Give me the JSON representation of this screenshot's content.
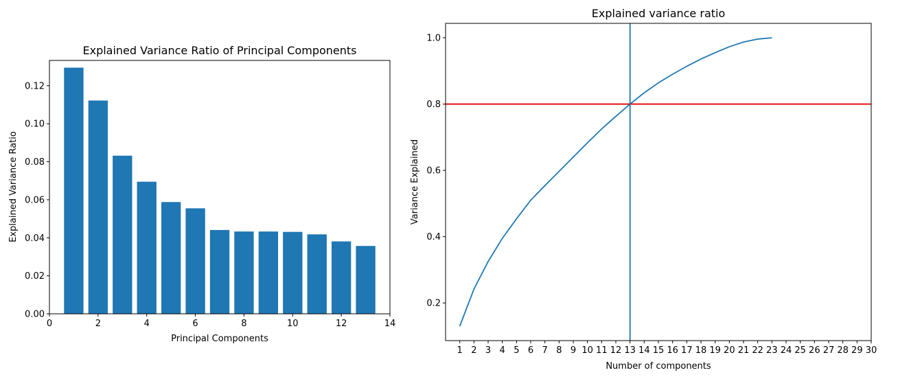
{
  "chart_data": [
    {
      "type": "bar",
      "title": "Explained Variance Ratio of Principal Components",
      "xlabel": "Principal Components",
      "ylabel": "Explained Variance Ratio",
      "x": [
        1,
        2,
        3,
        4,
        5,
        6,
        7,
        8,
        9,
        10,
        11,
        12,
        13
      ],
      "values": [
        0.1295,
        0.1122,
        0.0832,
        0.0695,
        0.0588,
        0.0555,
        0.0441,
        0.0433,
        0.0433,
        0.0431,
        0.0418,
        0.0381,
        0.0357
      ],
      "xlim": [
        0,
        14
      ],
      "ylim": [
        0,
        0.1333
      ],
      "xticks": [
        "0",
        "2",
        "4",
        "6",
        "8",
        "10",
        "12",
        "14"
      ],
      "yticks": [
        "0.00",
        "0.02",
        "0.04",
        "0.06",
        "0.08",
        "0.10",
        "0.12"
      ],
      "color": "#1f77b4"
    },
    {
      "type": "line",
      "title": "Explained variance ratio",
      "xlabel": "Number of components",
      "ylabel": "Variance Explained",
      "x": [
        1,
        2,
        3,
        4,
        5,
        6,
        7,
        8,
        9,
        10,
        11,
        12,
        13,
        14,
        15,
        16,
        17,
        18,
        19,
        20,
        21,
        22,
        23
      ],
      "values": [
        0.13,
        0.242,
        0.325,
        0.395,
        0.454,
        0.51,
        0.554,
        0.597,
        0.64,
        0.683,
        0.725,
        0.763,
        0.8,
        0.834,
        0.864,
        0.89,
        0.914,
        0.936,
        0.955,
        0.973,
        0.987,
        0.996,
        1.0
      ],
      "xlim": [
        0,
        30
      ],
      "ylim": [
        0.0865,
        1.0435
      ],
      "xticks": [
        "1",
        "2",
        "3",
        "4",
        "5",
        "6",
        "7",
        "8",
        "9",
        "10",
        "11",
        "12",
        "13",
        "14",
        "15",
        "16",
        "17",
        "18",
        "19",
        "20",
        "21",
        "22",
        "23",
        "24",
        "25",
        "26",
        "27",
        "28",
        "29",
        "30"
      ],
      "yticks": [
        "0.2",
        "0.4",
        "0.6",
        "0.8",
        "1.0"
      ],
      "hline": 0.8,
      "vline": 13,
      "line_color": "#1f77b4",
      "hline_color": "#e00000",
      "vline_color": "#1f77b4"
    }
  ]
}
